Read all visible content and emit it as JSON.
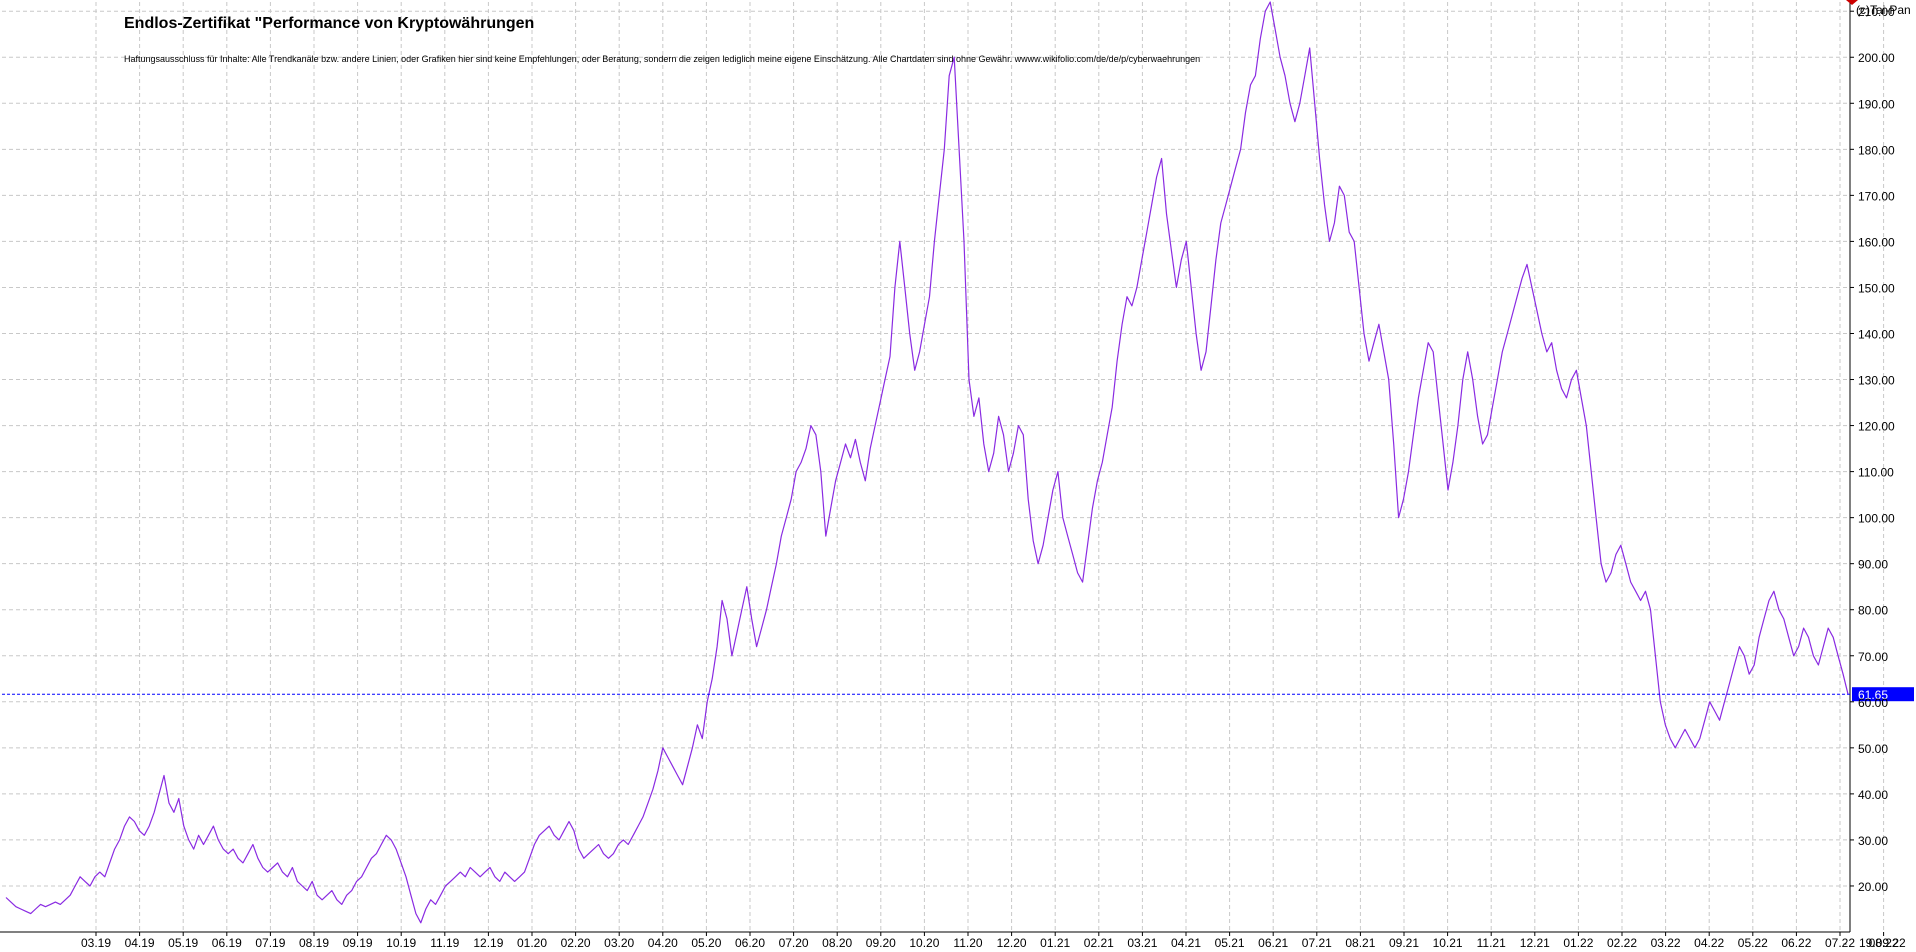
{
  "chart_data": {
    "type": "line",
    "title": "Endlos-Zertifikat \"Performance von Kryptowährungen",
    "subtitle": "Haftungsausschluss für Inhalte: Alle Trendkanäle bzw. andere Linien, oder Grafiken hier sind keine Empfehlungen, oder Beratung, sondern die zeigen lediglich meine eigene Einschätzung. Alle Chartdaten sind ohne Gewähr. wwww.wikifolio.com/de/de/p/cyberwaehrungen",
    "copyright": "(c)Tai-Pan",
    "ylim": [
      10,
      212
    ],
    "y_ticks": [
      "20.00",
      "30.00",
      "40.00",
      "50.00",
      "60.00",
      "70.00",
      "80.00",
      "90.00",
      "100.00",
      "110.00",
      "120.00",
      "130.00",
      "140.00",
      "150.00",
      "160.00",
      "170.00",
      "180.00",
      "190.00",
      "200.00",
      "210.00"
    ],
    "x_ticks": [
      "03.19",
      "04.19",
      "05.19",
      "06.19",
      "07.19",
      "08.19",
      "09.19",
      "10.19",
      "11.19",
      "12.19",
      "01.20",
      "02.20",
      "03.20",
      "04.20",
      "05.20",
      "06.20",
      "07.20",
      "08.20",
      "09.20",
      "10.20",
      "11.20",
      "12.20",
      "01.21",
      "02.21",
      "03.21",
      "04.21",
      "05.21",
      "06.21",
      "07.21",
      "08.21",
      "09.21",
      "10.21",
      "11.21",
      "12.21",
      "01.22",
      "02.22",
      "03.22",
      "04.22",
      "05.22",
      "06.22",
      "07.22",
      "08.22"
    ],
    "x_end_label": "19.09.22",
    "x_end_marker": "-",
    "last_value": 61.65,
    "last_value_label": "61.65",
    "grid": true,
    "series": [
      {
        "color": "#8a2be2",
        "values": [
          17.5,
          16.5,
          15.5,
          15,
          14.5,
          14,
          15,
          16,
          15.5,
          16,
          16.5,
          16,
          17,
          18,
          20,
          22,
          21,
          20,
          22,
          23,
          22,
          25,
          28,
          30,
          33,
          35,
          34,
          32,
          31,
          33,
          36,
          40,
          44,
          38,
          36,
          39,
          33,
          30,
          28,
          31,
          29,
          31,
          33,
          30,
          28,
          27,
          28,
          26,
          25,
          27,
          29,
          26,
          24,
          23,
          24,
          25,
          23,
          22,
          24,
          21,
          20,
          19,
          21,
          18,
          17,
          18,
          19,
          17,
          16,
          18,
          19,
          21,
          22,
          24,
          26,
          27,
          29,
          31,
          30,
          28,
          25,
          22,
          18,
          14,
          12,
          15,
          17,
          16,
          18,
          20,
          21,
          22,
          23,
          22,
          24,
          23,
          22,
          23,
          24,
          22,
          21,
          23,
          22,
          21,
          22,
          23,
          26,
          29,
          31,
          32,
          33,
          31,
          30,
          32,
          34,
          32,
          28,
          26,
          27,
          28,
          29,
          27,
          26,
          27,
          29,
          30,
          29,
          31,
          33,
          35,
          38,
          41,
          45,
          50,
          48,
          46,
          44,
          42,
          46,
          50,
          55,
          52,
          60,
          65,
          72,
          82,
          78,
          70,
          75,
          80,
          85,
          78,
          72,
          76,
          80,
          85,
          90,
          96,
          100,
          104,
          110,
          112,
          115,
          120,
          118,
          110,
          96,
          102,
          108,
          112,
          116,
          113,
          117,
          112,
          108,
          115,
          120,
          125,
          130,
          135,
          150,
          160,
          150,
          140,
          132,
          136,
          142,
          148,
          160,
          170,
          180,
          196,
          200,
          180,
          160,
          130,
          122,
          126,
          116,
          110,
          114,
          122,
          118,
          110,
          114,
          120,
          118,
          104,
          95,
          90,
          94,
          100,
          106,
          110,
          100,
          96,
          92,
          88,
          86,
          94,
          102,
          108,
          112,
          118,
          124,
          134,
          142,
          148,
          146,
          150,
          156,
          162,
          168,
          174,
          178,
          166,
          158,
          150,
          156,
          160,
          150,
          140,
          132,
          136,
          146,
          156,
          164,
          168,
          172,
          176,
          180,
          188,
          194,
          196,
          204,
          210,
          212,
          206,
          200,
          196,
          190,
          186,
          190,
          196,
          202,
          190,
          178,
          168,
          160,
          164,
          172,
          170,
          162,
          160,
          150,
          140,
          134,
          138,
          142,
          136,
          130,
          116,
          100,
          104,
          110,
          118,
          126,
          132,
          138,
          136,
          126,
          116,
          106,
          112,
          120,
          130,
          136,
          130,
          122,
          116,
          118,
          124,
          130,
          136,
          140,
          144,
          148,
          152,
          155,
          150,
          145,
          140,
          136,
          138,
          132,
          128,
          126,
          130,
          132,
          126,
          120,
          110,
          100,
          90,
          86,
          88,
          92,
          94,
          90,
          86,
          84,
          82,
          84,
          80,
          70,
          60,
          55,
          52,
          50,
          52,
          54,
          52,
          50,
          52,
          56,
          60,
          58,
          56,
          60,
          64,
          68,
          72,
          70,
          66,
          68,
          74,
          78,
          82,
          84,
          80,
          78,
          74,
          70,
          72,
          76,
          74,
          70,
          68,
          72,
          76,
          74,
          70,
          66,
          61.65
        ]
      }
    ]
  }
}
